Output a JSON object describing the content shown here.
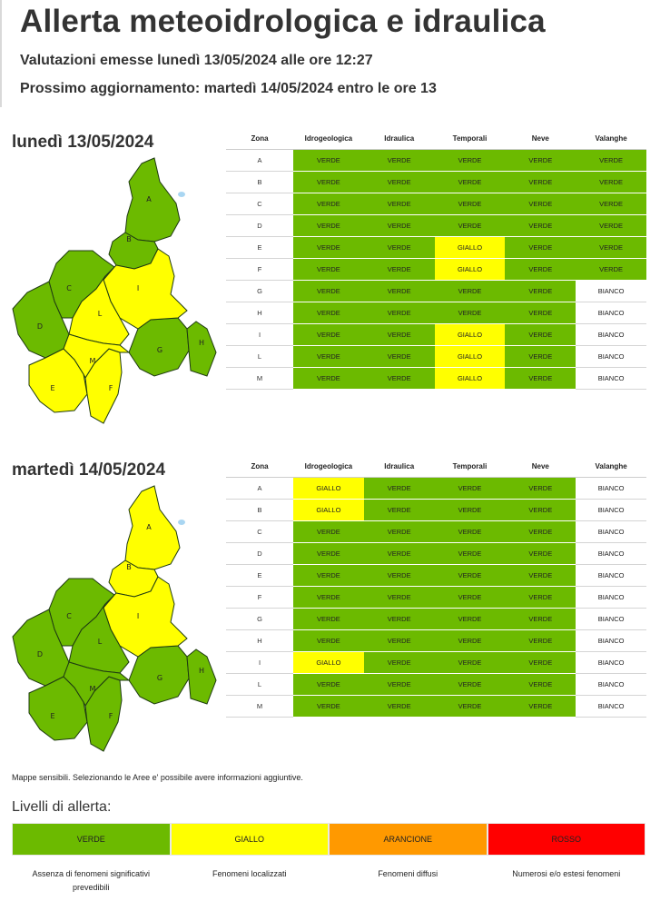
{
  "header": {
    "title": "Allerta meteoidrologica e idraulica",
    "issued": "Valutazioni emesse lunedì 13/05/2024 alle ore 12:27",
    "next_update": "Prossimo aggiornamento: martedì 14/05/2024 entro le ore 13"
  },
  "columns": [
    "Zona",
    "Idrogeologica",
    "Idraulica",
    "Temporali",
    "Neve",
    "Valanghe"
  ],
  "colors": {
    "VERDE": "#6cba00",
    "GIALLO": "#ffff00",
    "ARANCIONE": "#ff9900",
    "ROSSO": "#ff0000",
    "BIANCO": "#ffffff"
  },
  "days": [
    {
      "label": "lunedì 13/05/2024",
      "map_zones": {
        "A": "VERDE",
        "B": "VERDE",
        "C": "VERDE",
        "D": "VERDE",
        "E": "GIALLO",
        "F": "GIALLO",
        "G": "VERDE",
        "H": "VERDE",
        "I": "GIALLO",
        "L": "GIALLO",
        "M": "GIALLO"
      },
      "rows": [
        {
          "zone": "A",
          "values": [
            "VERDE",
            "VERDE",
            "VERDE",
            "VERDE",
            "VERDE"
          ]
        },
        {
          "zone": "B",
          "values": [
            "VERDE",
            "VERDE",
            "VERDE",
            "VERDE",
            "VERDE"
          ]
        },
        {
          "zone": "C",
          "values": [
            "VERDE",
            "VERDE",
            "VERDE",
            "VERDE",
            "VERDE"
          ]
        },
        {
          "zone": "D",
          "values": [
            "VERDE",
            "VERDE",
            "VERDE",
            "VERDE",
            "VERDE"
          ]
        },
        {
          "zone": "E",
          "values": [
            "VERDE",
            "VERDE",
            "GIALLO",
            "VERDE",
            "VERDE"
          ]
        },
        {
          "zone": "F",
          "values": [
            "VERDE",
            "VERDE",
            "GIALLO",
            "VERDE",
            "VERDE"
          ]
        },
        {
          "zone": "G",
          "values": [
            "VERDE",
            "VERDE",
            "VERDE",
            "VERDE",
            "BIANCO"
          ]
        },
        {
          "zone": "H",
          "values": [
            "VERDE",
            "VERDE",
            "VERDE",
            "VERDE",
            "BIANCO"
          ]
        },
        {
          "zone": "I",
          "values": [
            "VERDE",
            "VERDE",
            "GIALLO",
            "VERDE",
            "BIANCO"
          ]
        },
        {
          "zone": "L",
          "values": [
            "VERDE",
            "VERDE",
            "GIALLO",
            "VERDE",
            "BIANCO"
          ]
        },
        {
          "zone": "M",
          "values": [
            "VERDE",
            "VERDE",
            "GIALLO",
            "VERDE",
            "BIANCO"
          ]
        }
      ]
    },
    {
      "label": "martedì 14/05/2024",
      "map_zones": {
        "A": "GIALLO",
        "B": "GIALLO",
        "C": "VERDE",
        "D": "VERDE",
        "E": "VERDE",
        "F": "VERDE",
        "G": "VERDE",
        "H": "VERDE",
        "I": "GIALLO",
        "L": "VERDE",
        "M": "VERDE"
      },
      "rows": [
        {
          "zone": "A",
          "values": [
            "GIALLO",
            "VERDE",
            "VERDE",
            "VERDE",
            "BIANCO"
          ]
        },
        {
          "zone": "B",
          "values": [
            "GIALLO",
            "VERDE",
            "VERDE",
            "VERDE",
            "BIANCO"
          ]
        },
        {
          "zone": "C",
          "values": [
            "VERDE",
            "VERDE",
            "VERDE",
            "VERDE",
            "BIANCO"
          ]
        },
        {
          "zone": "D",
          "values": [
            "VERDE",
            "VERDE",
            "VERDE",
            "VERDE",
            "BIANCO"
          ]
        },
        {
          "zone": "E",
          "values": [
            "VERDE",
            "VERDE",
            "VERDE",
            "VERDE",
            "BIANCO"
          ]
        },
        {
          "zone": "F",
          "values": [
            "VERDE",
            "VERDE",
            "VERDE",
            "VERDE",
            "BIANCO"
          ]
        },
        {
          "zone": "G",
          "values": [
            "VERDE",
            "VERDE",
            "VERDE",
            "VERDE",
            "BIANCO"
          ]
        },
        {
          "zone": "H",
          "values": [
            "VERDE",
            "VERDE",
            "VERDE",
            "VERDE",
            "BIANCO"
          ]
        },
        {
          "zone": "I",
          "values": [
            "GIALLO",
            "VERDE",
            "VERDE",
            "VERDE",
            "BIANCO"
          ]
        },
        {
          "zone": "L",
          "values": [
            "VERDE",
            "VERDE",
            "VERDE",
            "VERDE",
            "BIANCO"
          ]
        },
        {
          "zone": "M",
          "values": [
            "VERDE",
            "VERDE",
            "VERDE",
            "VERDE",
            "BIANCO"
          ]
        }
      ]
    }
  ],
  "note": "Mappe sensibili. Selezionando le Aree e' possibile avere informazioni aggiuntive.",
  "levels_title": "Livelli di allerta:",
  "levels": [
    {
      "label": "VERDE",
      "color": "#6cba00",
      "description": "Assenza di fenomeni significativi prevedibili"
    },
    {
      "label": "GIALLO",
      "color": "#ffff00",
      "description": "Fenomeni localizzati"
    },
    {
      "label": "ARANCIONE",
      "color": "#ff9900",
      "description": "Fenomeni diffusi"
    },
    {
      "label": "ROSSO",
      "color": "#ff0000",
      "description": "Numerosi e/o estesi fenomeni"
    }
  ]
}
